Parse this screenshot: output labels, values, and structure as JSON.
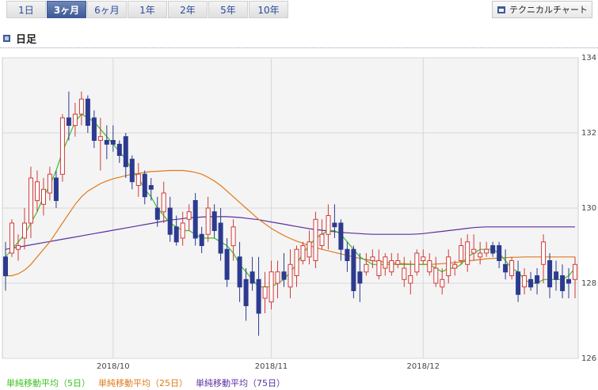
{
  "tabs": [
    {
      "label": "1日",
      "active": false
    },
    {
      "label": "3ヶ月",
      "active": true
    },
    {
      "label": "6ヶ月",
      "active": false
    },
    {
      "label": "1年",
      "active": false
    },
    {
      "label": "2年",
      "active": false
    },
    {
      "label": "5年",
      "active": false
    },
    {
      "label": "10年",
      "active": false
    }
  ],
  "technical_chart_label": "テクニカルチャート",
  "section_title": "日足",
  "colors": {
    "up": "#d13a3a",
    "down": "#2c3a8f",
    "ma5": "#3cc21e",
    "ma25": "#e07a1a",
    "ma75": "#5b2fa0"
  },
  "legend": [
    {
      "label": "単純移動平均（5日）",
      "color": "#3cc21e"
    },
    {
      "label": "単純移動平均（25日）",
      "color": "#e07a1a"
    },
    {
      "label": "単純移動平均（75日）",
      "color": "#5b2fa0"
    }
  ],
  "chart_data": {
    "type": "candlestick",
    "y_ticks": [
      "126",
      "128",
      "130",
      "132",
      "134"
    ],
    "ylim": [
      126,
      134
    ],
    "x_labels": [
      {
        "label": "2018/10",
        "index": 17
      },
      {
        "label": "2018/11",
        "index": 42
      },
      {
        "label": "2018/12",
        "index": 66
      }
    ],
    "candles": [
      [
        128.7,
        129.1,
        127.8,
        128.2
      ],
      [
        128.8,
        129.7,
        128.7,
        129.6
      ],
      [
        128.9,
        129.3,
        128.6,
        129.0
      ],
      [
        129.2,
        130.0,
        128.9,
        129.6
      ],
      [
        129.6,
        131.1,
        129.2,
        130.8
      ],
      [
        130.2,
        131.0,
        129.9,
        130.7
      ],
      [
        130.1,
        130.8,
        129.8,
        130.5
      ],
      [
        130.4,
        131.1,
        130.2,
        130.9
      ],
      [
        130.8,
        131.0,
        130.0,
        130.2
      ],
      [
        130.9,
        132.5,
        130.7,
        132.4
      ],
      [
        132.4,
        133.1,
        131.8,
        132.2
      ],
      [
        132.2,
        132.8,
        131.9,
        132.5
      ],
      [
        132.5,
        133.1,
        132.2,
        132.9
      ],
      [
        132.9,
        133.0,
        132.0,
        132.2
      ],
      [
        132.4,
        132.6,
        131.6,
        131.8
      ],
      [
        131.8,
        132.4,
        131.0,
        131.9
      ],
      [
        131.8,
        132.2,
        131.3,
        131.7
      ],
      [
        131.8,
        132.2,
        131.5,
        131.7
      ],
      [
        131.7,
        131.8,
        131.2,
        131.4
      ],
      [
        131.9,
        132.0,
        130.8,
        131.1
      ],
      [
        131.3,
        131.4,
        130.5,
        130.7
      ],
      [
        130.6,
        131.2,
        130.3,
        130.9
      ],
      [
        130.9,
        131.0,
        130.1,
        130.3
      ],
      [
        130.6,
        130.8,
        130.2,
        130.5
      ],
      [
        130.0,
        130.3,
        129.5,
        129.7
      ],
      [
        129.9,
        130.7,
        129.6,
        130.4
      ],
      [
        130.0,
        130.3,
        129.1,
        129.3
      ],
      [
        129.5,
        129.8,
        129.0,
        129.1
      ],
      [
        129.2,
        129.9,
        129.0,
        129.6
      ],
      [
        129.7,
        130.1,
        129.4,
        129.9
      ],
      [
        130.2,
        130.4,
        129.0,
        129.2
      ],
      [
        129.3,
        129.5,
        128.8,
        129.0
      ],
      [
        129.3,
        130.3,
        129.1,
        130.0
      ],
      [
        129.9,
        130.1,
        129.2,
        129.4
      ],
      [
        129.6,
        130.0,
        128.6,
        128.8
      ],
      [
        128.9,
        129.2,
        127.9,
        128.1
      ],
      [
        129.0,
        129.7,
        128.6,
        129.5
      ],
      [
        128.7,
        129.1,
        127.5,
        127.9
      ],
      [
        128.1,
        128.4,
        127.0,
        127.4
      ],
      [
        128.3,
        128.7,
        127.8,
        128.0
      ],
      [
        128.1,
        128.7,
        126.6,
        127.2
      ],
      [
        127.6,
        128.3,
        127.2,
        127.9
      ],
      [
        127.5,
        128.6,
        127.3,
        128.3
      ],
      [
        128.0,
        128.6,
        127.6,
        128.3
      ],
      [
        128.3,
        128.8,
        127.9,
        128.1
      ],
      [
        127.9,
        128.9,
        127.6,
        128.5
      ],
      [
        128.2,
        129.0,
        127.9,
        128.9
      ],
      [
        128.6,
        129.1,
        128.5,
        129.0
      ],
      [
        128.7,
        129.4,
        128.5,
        129.1
      ],
      [
        128.6,
        129.9,
        128.4,
        129.7
      ],
      [
        129.0,
        129.7,
        128.9,
        129.3
      ],
      [
        129.3,
        130.1,
        128.9,
        129.8
      ],
      [
        129.6,
        130.1,
        129.2,
        129.5
      ],
      [
        129.6,
        129.7,
        128.6,
        128.9
      ],
      [
        128.9,
        129.1,
        128.3,
        128.6
      ],
      [
        128.9,
        129.0,
        127.6,
        127.8
      ],
      [
        128.3,
        128.8,
        127.5,
        128.0
      ],
      [
        128.3,
        128.8,
        128.2,
        128.5
      ],
      [
        128.6,
        128.9,
        128.4,
        128.7
      ],
      [
        128.2,
        128.9,
        128.1,
        128.6
      ],
      [
        128.4,
        128.8,
        128.2,
        128.7
      ],
      [
        128.3,
        128.8,
        128.2,
        128.6
      ],
      [
        128.5,
        128.8,
        128.4,
        128.6
      ],
      [
        128.1,
        128.7,
        127.9,
        128.4
      ],
      [
        128.0,
        128.6,
        127.7,
        128.2
      ],
      [
        128.3,
        128.9,
        128.2,
        128.8
      ],
      [
        128.6,
        128.9,
        128.5,
        128.7
      ],
      [
        128.3,
        128.8,
        128.2,
        128.6
      ],
      [
        128.0,
        128.7,
        127.9,
        128.4
      ],
      [
        127.9,
        128.4,
        127.7,
        128.1
      ],
      [
        128.2,
        128.9,
        128.0,
        128.7
      ],
      [
        128.4,
        128.6,
        128.2,
        128.5
      ],
      [
        128.6,
        129.2,
        128.5,
        129.0
      ],
      [
        128.5,
        129.3,
        128.3,
        129.1
      ],
      [
        128.8,
        129.3,
        128.6,
        128.9
      ],
      [
        128.7,
        129.1,
        128.5,
        128.8
      ],
      [
        128.8,
        129.1,
        128.7,
        128.9
      ],
      [
        129.0,
        129.1,
        128.7,
        128.8
      ],
      [
        129.0,
        129.1,
        128.4,
        128.6
      ],
      [
        128.5,
        128.9,
        128.1,
        128.3
      ],
      [
        128.2,
        128.7,
        128.1,
        128.6
      ],
      [
        128.3,
        128.6,
        127.5,
        127.7
      ],
      [
        127.9,
        128.4,
        127.7,
        128.2
      ],
      [
        128.1,
        128.3,
        127.8,
        127.9
      ],
      [
        128.2,
        128.4,
        127.7,
        128.0
      ],
      [
        128.5,
        129.3,
        128.0,
        129.1
      ],
      [
        128.6,
        128.8,
        127.6,
        127.9
      ],
      [
        128.3,
        128.6,
        127.8,
        128.1
      ],
      [
        128.2,
        128.5,
        127.6,
        127.8
      ],
      [
        128.1,
        128.4,
        127.6,
        128.0
      ],
      [
        128.1,
        128.7,
        127.6,
        128.5
      ]
    ],
    "series": [
      {
        "name": "単純移動平均（5日）",
        "values": [
          128.7,
          128.9,
          129.1,
          129.3,
          129.6,
          129.9,
          130.3,
          130.6,
          131.0,
          131.5,
          131.9,
          132.3,
          132.5,
          132.4,
          132.3,
          132.1,
          131.9,
          131.7,
          131.5,
          131.3,
          131.0,
          130.8,
          130.5,
          130.3,
          130.0,
          129.8,
          129.6,
          129.5,
          129.4,
          129.4,
          129.3,
          129.2,
          129.2,
          129.2,
          129.1,
          129.0,
          128.8,
          128.5,
          128.3,
          128.1,
          127.9,
          127.9,
          127.9,
          128.0,
          128.1,
          128.3,
          128.5,
          128.8,
          129.0,
          129.2,
          129.3,
          129.4,
          129.4,
          129.3,
          129.1,
          128.9,
          128.7,
          128.6,
          128.5,
          128.5,
          128.5,
          128.5,
          128.5,
          128.5,
          128.5,
          128.5,
          128.5,
          128.5,
          128.4,
          128.3,
          128.4,
          128.4,
          128.5,
          128.7,
          128.8,
          128.9,
          128.9,
          128.9,
          128.8,
          128.6,
          128.4,
          128.3,
          128.1,
          128.0,
          128.0,
          128.1,
          128.1,
          128.1,
          128.1,
          128.2,
          128.4
        ]
      },
      {
        "name": "単純移動平均（25日）",
        "values": [
          128.2,
          128.2,
          128.25,
          128.35,
          128.5,
          128.7,
          128.9,
          129.1,
          129.35,
          129.6,
          129.85,
          130.1,
          130.3,
          130.45,
          130.55,
          130.65,
          130.72,
          130.78,
          130.82,
          130.86,
          130.9,
          130.92,
          130.95,
          130.97,
          130.98,
          130.99,
          131.0,
          131.0,
          131.0,
          130.98,
          130.95,
          130.9,
          130.82,
          130.72,
          130.6,
          130.45,
          130.3,
          130.15,
          130.0,
          129.85,
          129.7,
          129.58,
          129.46,
          129.36,
          129.27,
          129.19,
          129.12,
          129.06,
          129.0,
          128.95,
          128.9,
          128.86,
          128.82,
          128.78,
          128.74,
          128.7,
          128.66,
          128.63,
          128.6,
          128.58,
          128.56,
          128.54,
          128.53,
          128.52,
          128.51,
          128.5,
          128.5,
          128.5,
          128.51,
          128.52,
          128.53,
          128.55,
          128.57,
          128.59,
          128.61,
          128.63,
          128.65,
          128.66,
          128.67,
          128.68,
          128.69,
          128.69,
          128.7,
          128.7,
          128.7,
          128.7,
          128.7,
          128.7,
          128.7,
          128.7,
          128.7
        ]
      },
      {
        "name": "単純移動平均（75日）",
        "values": [
          128.9,
          128.93,
          128.96,
          128.99,
          129.02,
          129.05,
          129.08,
          129.11,
          129.14,
          129.17,
          129.2,
          129.23,
          129.26,
          129.29,
          129.32,
          129.35,
          129.38,
          129.41,
          129.44,
          129.47,
          129.5,
          129.53,
          129.56,
          129.59,
          129.62,
          129.65,
          129.68,
          129.7,
          129.72,
          129.74,
          129.75,
          129.76,
          129.77,
          129.77,
          129.77,
          129.77,
          129.76,
          129.75,
          129.73,
          129.71,
          129.69,
          129.66,
          129.63,
          129.6,
          129.57,
          129.54,
          129.51,
          129.48,
          129.45,
          129.43,
          129.41,
          129.39,
          129.37,
          129.35,
          129.34,
          129.33,
          129.32,
          129.31,
          129.3,
          129.3,
          129.3,
          129.3,
          129.3,
          129.3,
          129.3,
          129.31,
          129.32,
          129.34,
          129.36,
          129.38,
          129.4,
          129.42,
          129.44,
          129.46,
          129.48,
          129.49,
          129.5,
          129.5,
          129.5,
          129.5,
          129.5,
          129.5,
          129.5,
          129.5,
          129.5,
          129.5,
          129.5,
          129.5,
          129.5,
          129.5,
          129.5
        ]
      }
    ]
  }
}
